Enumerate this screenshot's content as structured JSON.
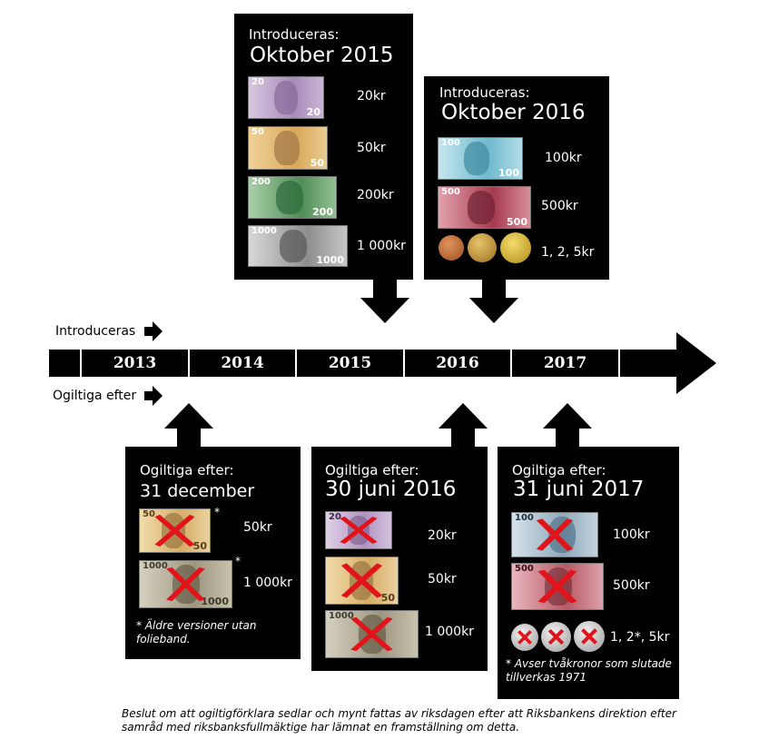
{
  "timeline": {
    "introduce_label": "Introduceras",
    "invalid_label": "Ogiltiga efter",
    "years": [
      "2013",
      "2014",
      "2015",
      "2016",
      "2017"
    ]
  },
  "panels": {
    "oct2015": {
      "intro": "Introduceras:",
      "date": "Oktober 2015",
      "items": [
        {
          "label": "20kr",
          "note_value": "20",
          "color": "#b99fc6"
        },
        {
          "label": "50kr",
          "note_value": "50",
          "color": "#e2b46a"
        },
        {
          "label": "200kr",
          "note_value": "200",
          "color": "#5e9a63"
        },
        {
          "label": "1 000kr",
          "note_value": "1000",
          "color": "#9a9a9a"
        }
      ]
    },
    "oct2016": {
      "intro": "Introduceras:",
      "date": "Oktober 2016",
      "items": [
        {
          "label": "100kr",
          "note_value": "100",
          "color": "#7fc6d6"
        },
        {
          "label": "500kr",
          "note_value": "500",
          "color": "#b5485c"
        },
        {
          "label": "1, 2, 5kr"
        }
      ]
    },
    "dec2013": {
      "intro": "Ogiltiga efter:",
      "date": "31 december 2013",
      "items": [
        {
          "label": "50kr",
          "note_value": "50",
          "star": "*",
          "color": "#e2c58a"
        },
        {
          "label": "1 000kr",
          "note_value": "1000",
          "star": "*",
          "color": "#b0a88f"
        }
      ],
      "note": "* Äldre versioner utan folieband."
    },
    "jun2016": {
      "intro": "Ogiltiga efter:",
      "date": "30 juni 2016",
      "items": [
        {
          "label": "20kr",
          "note_value": "20",
          "color": "#c4a9cf"
        },
        {
          "label": "50kr",
          "note_value": "50",
          "color": "#e2c58a"
        },
        {
          "label": "1 000kr",
          "note_value": "1000",
          "color": "#b0a88f"
        }
      ]
    },
    "jun2017": {
      "intro": "Ogiltiga efter:",
      "date": "31 juni 2017",
      "items": [
        {
          "label": "100kr",
          "note_value": "100",
          "color": "#9fb6c6"
        },
        {
          "label": "500kr",
          "note_value": "500",
          "color": "#c46a74"
        },
        {
          "label": "1, 2*, 5kr"
        }
      ],
      "note": "* Avser tvåkronor som slutade tillverkas 1971"
    }
  },
  "footer": "Beslut om att ogiltigförklara sedlar och mynt fattas av riksdagen efter att Riksbankens direktion efter samråd med riksbanksfullmäktige har lämnat en framställning om detta.",
  "colors": {
    "panel_bg": "#000000",
    "cross": "#e0141a",
    "coin_bronze": "#b8652e",
    "coin_gold": "#d9b433",
    "coin_silver": "#c9c9c9"
  }
}
